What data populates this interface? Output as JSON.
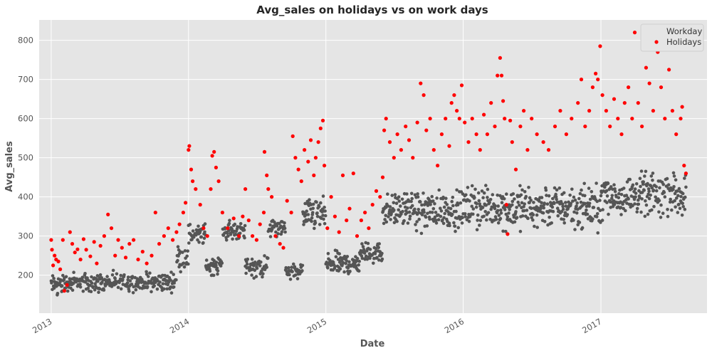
{
  "chart_data": {
    "type": "scatter",
    "title": "Avg_sales on holidays vs on work days",
    "xlabel": "Date",
    "ylabel": "Avg_sales",
    "xlim": [
      "2012-11-30",
      "2017-10-10"
    ],
    "ylim": [
      103,
      852
    ],
    "x_ticks": [
      "2013",
      "2014",
      "2015",
      "2016",
      "2017"
    ],
    "x_tick_dates": [
      "2013-01-01",
      "2014-01-01",
      "2015-01-01",
      "2016-01-01",
      "2017-01-01"
    ],
    "y_ticks": [
      200,
      300,
      400,
      500,
      600,
      700,
      800
    ],
    "grid": true,
    "background": "#e5e5e5",
    "legend": {
      "position": "top-right"
    },
    "series": [
      {
        "name": "Workday",
        "color": "#555555",
        "segments": [
          {
            "start": "2013-01-01",
            "end": "2013-01-31",
            "low": 140,
            "high": 210
          },
          {
            "start": "2013-02-01",
            "end": "2013-06-30",
            "low": 145,
            "high": 215
          },
          {
            "start": "2013-07-01",
            "end": "2013-11-30",
            "low": 150,
            "high": 215
          },
          {
            "start": "2013-12-01",
            "end": "2013-12-31",
            "low": 200,
            "high": 290
          },
          {
            "start": "2014-01-01",
            "end": "2014-02-15",
            "low": 260,
            "high": 345
          },
          {
            "start": "2014-02-16",
            "end": "2014-03-31",
            "low": 190,
            "high": 260
          },
          {
            "start": "2014-04-01",
            "end": "2014-05-31",
            "low": 280,
            "high": 345
          },
          {
            "start": "2014-06-01",
            "end": "2014-07-31",
            "low": 185,
            "high": 260
          },
          {
            "start": "2014-08-01",
            "end": "2014-09-15",
            "low": 290,
            "high": 350
          },
          {
            "start": "2014-09-16",
            "end": "2014-10-31",
            "low": 180,
            "high": 240
          },
          {
            "start": "2014-11-01",
            "end": "2014-12-31",
            "low": 300,
            "high": 410
          },
          {
            "start": "2015-01-01",
            "end": "2015-03-31",
            "low": 190,
            "high": 270
          },
          {
            "start": "2015-04-01",
            "end": "2015-05-31",
            "low": 220,
            "high": 295
          },
          {
            "start": "2015-06-01",
            "end": "2015-12-31",
            "low": 300,
            "high": 430
          },
          {
            "start": "2016-01-01",
            "end": "2016-12-31",
            "low": 300,
            "high": 450
          },
          {
            "start": "2017-01-01",
            "end": "2017-08-15",
            "low": 330,
            "high": 480
          }
        ]
      },
      {
        "name": "Holidays",
        "color": "#ff0000",
        "points": [
          [
            "2013-01-01",
            290
          ],
          [
            "2013-01-03",
            265
          ],
          [
            "2013-01-06",
            225
          ],
          [
            "2013-01-10",
            250
          ],
          [
            "2013-01-14",
            240
          ],
          [
            "2013-01-20",
            235
          ],
          [
            "2013-01-25",
            215
          ],
          [
            "2013-02-01",
            290
          ],
          [
            "2013-02-05",
            160
          ],
          [
            "2013-02-12",
            175
          ],
          [
            "2013-02-20",
            310
          ],
          [
            "2013-02-26",
            280
          ],
          [
            "2013-03-05",
            258
          ],
          [
            "2013-03-12",
            266
          ],
          [
            "2013-03-20",
            240
          ],
          [
            "2013-03-28",
            292
          ],
          [
            "2013-04-04",
            265
          ],
          [
            "2013-04-15",
            248
          ],
          [
            "2013-04-25",
            285
          ],
          [
            "2013-05-02",
            230
          ],
          [
            "2013-05-12",
            275
          ],
          [
            "2013-05-22",
            300
          ],
          [
            "2013-06-01",
            355
          ],
          [
            "2013-06-10",
            320
          ],
          [
            "2013-06-20",
            250
          ],
          [
            "2013-06-28",
            290
          ],
          [
            "2013-07-08",
            270
          ],
          [
            "2013-07-18",
            245
          ],
          [
            "2013-07-28",
            280
          ],
          [
            "2013-08-08",
            290
          ],
          [
            "2013-08-20",
            240
          ],
          [
            "2013-09-01",
            260
          ],
          [
            "2013-09-12",
            230
          ],
          [
            "2013-09-25",
            250
          ],
          [
            "2013-10-05",
            360
          ],
          [
            "2013-10-15",
            280
          ],
          [
            "2013-10-28",
            300
          ],
          [
            "2013-11-08",
            320
          ],
          [
            "2013-11-20",
            290
          ],
          [
            "2013-11-30",
            310
          ],
          [
            "2013-12-08",
            330
          ],
          [
            "2013-12-18",
            360
          ],
          [
            "2013-12-24",
            385
          ],
          [
            "2014-01-01",
            520
          ],
          [
            "2014-01-03",
            530
          ],
          [
            "2014-01-08",
            470
          ],
          [
            "2014-01-12",
            440
          ],
          [
            "2014-01-20",
            420
          ],
          [
            "2014-02-01",
            380
          ],
          [
            "2014-02-10",
            320
          ],
          [
            "2014-02-20",
            300
          ],
          [
            "2014-03-01",
            420
          ],
          [
            "2014-03-05",
            505
          ],
          [
            "2014-03-10",
            515
          ],
          [
            "2014-03-15",
            475
          ],
          [
            "2014-03-22",
            440
          ],
          [
            "2014-04-01",
            360
          ],
          [
            "2014-04-15",
            320
          ],
          [
            "2014-05-01",
            345
          ],
          [
            "2014-05-15",
            300
          ],
          [
            "2014-05-25",
            350
          ],
          [
            "2014-06-01",
            420
          ],
          [
            "2014-06-10",
            340
          ],
          [
            "2014-06-20",
            300
          ],
          [
            "2014-07-01",
            290
          ],
          [
            "2014-07-10",
            330
          ],
          [
            "2014-07-20",
            360
          ],
          [
            "2014-07-22",
            515
          ],
          [
            "2014-07-28",
            455
          ],
          [
            "2014-08-01",
            420
          ],
          [
            "2014-08-10",
            400
          ],
          [
            "2014-08-20",
            300
          ],
          [
            "2014-09-01",
            280
          ],
          [
            "2014-09-10",
            270
          ],
          [
            "2014-09-20",
            390
          ],
          [
            "2014-10-01",
            360
          ],
          [
            "2014-10-05",
            555
          ],
          [
            "2014-10-12",
            500
          ],
          [
            "2014-10-20",
            470
          ],
          [
            "2014-10-28",
            440
          ],
          [
            "2014-11-05",
            520
          ],
          [
            "2014-11-15",
            490
          ],
          [
            "2014-11-22",
            545
          ],
          [
            "2014-11-30",
            455
          ],
          [
            "2014-12-05",
            500
          ],
          [
            "2014-12-12",
            540
          ],
          [
            "2014-12-18",
            575
          ],
          [
            "2014-12-24",
            595
          ],
          [
            "2014-12-28",
            480
          ],
          [
            "2015-01-05",
            320
          ],
          [
            "2015-01-15",
            400
          ],
          [
            "2015-01-25",
            350
          ],
          [
            "2015-02-05",
            310
          ],
          [
            "2015-02-15",
            455
          ],
          [
            "2015-02-25",
            340
          ],
          [
            "2015-03-05",
            370
          ],
          [
            "2015-03-15",
            460
          ],
          [
            "2015-03-25",
            300
          ],
          [
            "2015-04-05",
            340
          ],
          [
            "2015-04-15",
            360
          ],
          [
            "2015-04-25",
            320
          ],
          [
            "2015-05-05",
            380
          ],
          [
            "2015-05-15",
            415
          ],
          [
            "2015-05-25",
            400
          ],
          [
            "2015-06-01",
            450
          ],
          [
            "2015-06-05",
            570
          ],
          [
            "2015-06-10",
            600
          ],
          [
            "2015-06-20",
            540
          ],
          [
            "2015-07-01",
            500
          ],
          [
            "2015-07-10",
            560
          ],
          [
            "2015-07-20",
            520
          ],
          [
            "2015-08-01",
            580
          ],
          [
            "2015-08-10",
            545
          ],
          [
            "2015-08-20",
            500
          ],
          [
            "2015-09-01",
            590
          ],
          [
            "2015-09-10",
            690
          ],
          [
            "2015-09-18",
            660
          ],
          [
            "2015-09-25",
            570
          ],
          [
            "2015-10-05",
            600
          ],
          [
            "2015-10-15",
            520
          ],
          [
            "2015-10-25",
            480
          ],
          [
            "2015-11-05",
            560
          ],
          [
            "2015-11-15",
            600
          ],
          [
            "2015-11-25",
            530
          ],
          [
            "2015-12-01",
            640
          ],
          [
            "2015-12-08",
            660
          ],
          [
            "2015-12-15",
            620
          ],
          [
            "2015-12-22",
            600
          ],
          [
            "2015-12-28",
            685
          ],
          [
            "2016-01-05",
            590
          ],
          [
            "2016-01-15",
            540
          ],
          [
            "2016-01-25",
            600
          ],
          [
            "2016-02-05",
            560
          ],
          [
            "2016-02-15",
            520
          ],
          [
            "2016-02-25",
            610
          ],
          [
            "2016-03-05",
            560
          ],
          [
            "2016-03-15",
            640
          ],
          [
            "2016-03-25",
            580
          ],
          [
            "2016-04-01",
            710
          ],
          [
            "2016-04-08",
            755
          ],
          [
            "2016-04-12",
            710
          ],
          [
            "2016-04-16",
            645
          ],
          [
            "2016-04-20",
            600
          ],
          [
            "2016-04-25",
            380
          ],
          [
            "2016-04-28",
            305
          ],
          [
            "2016-05-05",
            595
          ],
          [
            "2016-05-10",
            540
          ],
          [
            "2016-05-20",
            470
          ],
          [
            "2016-06-01",
            580
          ],
          [
            "2016-06-10",
            620
          ],
          [
            "2016-06-20",
            520
          ],
          [
            "2016-07-01",
            600
          ],
          [
            "2016-07-15",
            560
          ],
          [
            "2016-08-01",
            540
          ],
          [
            "2016-08-15",
            520
          ],
          [
            "2016-09-01",
            580
          ],
          [
            "2016-09-15",
            620
          ],
          [
            "2016-10-01",
            560
          ],
          [
            "2016-10-15",
            600
          ],
          [
            "2016-11-01",
            640
          ],
          [
            "2016-11-10",
            700
          ],
          [
            "2016-11-20",
            580
          ],
          [
            "2016-12-01",
            620
          ],
          [
            "2016-12-10",
            680
          ],
          [
            "2016-12-18",
            715
          ],
          [
            "2016-12-24",
            700
          ],
          [
            "2016-12-30",
            785
          ],
          [
            "2017-01-05",
            660
          ],
          [
            "2017-01-15",
            620
          ],
          [
            "2017-01-25",
            580
          ],
          [
            "2017-02-05",
            650
          ],
          [
            "2017-02-15",
            600
          ],
          [
            "2017-02-25",
            560
          ],
          [
            "2017-03-05",
            640
          ],
          [
            "2017-03-15",
            680
          ],
          [
            "2017-03-25",
            600
          ],
          [
            "2017-04-01",
            820
          ],
          [
            "2017-04-10",
            640
          ],
          [
            "2017-04-20",
            580
          ],
          [
            "2017-05-01",
            730
          ],
          [
            "2017-05-10",
            690
          ],
          [
            "2017-05-20",
            620
          ],
          [
            "2017-06-01",
            770
          ],
          [
            "2017-06-10",
            680
          ],
          [
            "2017-06-20",
            600
          ],
          [
            "2017-07-01",
            725
          ],
          [
            "2017-07-10",
            620
          ],
          [
            "2017-07-20",
            560
          ],
          [
            "2017-08-01",
            600
          ],
          [
            "2017-08-05",
            630
          ],
          [
            "2017-08-10",
            480
          ],
          [
            "2017-08-15",
            460
          ]
        ]
      }
    ]
  }
}
